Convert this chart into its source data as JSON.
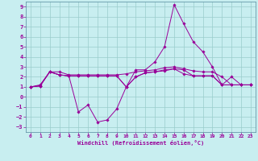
{
  "xlabel": "Windchill (Refroidissement éolien,°C)",
  "bg_color": "#c8eef0",
  "line_color": "#990099",
  "grid_color": "#99cccc",
  "xlim": [
    -0.5,
    23.5
  ],
  "ylim": [
    -3.5,
    9.5
  ],
  "xticks": [
    0,
    1,
    2,
    3,
    4,
    5,
    6,
    7,
    8,
    9,
    10,
    11,
    12,
    13,
    14,
    15,
    16,
    17,
    18,
    19,
    20,
    21,
    22,
    23
  ],
  "yticks": [
    -3,
    -2,
    -1,
    0,
    1,
    2,
    3,
    4,
    5,
    6,
    7,
    8,
    9
  ],
  "s1": [
    1.0,
    1.2,
    2.5,
    2.2,
    2.1,
    -1.5,
    -0.8,
    -2.5,
    -2.3,
    -1.2,
    1.0,
    2.7,
    2.7,
    3.5,
    5.0,
    9.2,
    7.3,
    5.5,
    4.5,
    3.0,
    1.2,
    1.2,
    1.2,
    1.2
  ],
  "s2": [
    1.0,
    1.1,
    2.5,
    2.5,
    2.2,
    2.2,
    2.2,
    2.2,
    2.2,
    2.2,
    2.3,
    2.5,
    2.6,
    2.7,
    2.9,
    3.0,
    2.8,
    2.6,
    2.5,
    2.5,
    2.0,
    1.2,
    1.2,
    1.2
  ],
  "s3": [
    1.0,
    1.1,
    2.5,
    2.2,
    2.1,
    2.1,
    2.1,
    2.1,
    2.1,
    2.1,
    1.0,
    2.0,
    2.4,
    2.5,
    2.7,
    2.8,
    2.7,
    2.1,
    2.1,
    2.1,
    1.2,
    2.0,
    1.2,
    1.2
  ],
  "s4": [
    1.0,
    1.1,
    2.5,
    2.2,
    2.1,
    2.1,
    2.1,
    2.1,
    2.1,
    2.1,
    1.0,
    2.0,
    2.4,
    2.5,
    2.6,
    2.8,
    2.3,
    2.1,
    2.1,
    2.1,
    1.2,
    1.2,
    1.2,
    1.2
  ]
}
